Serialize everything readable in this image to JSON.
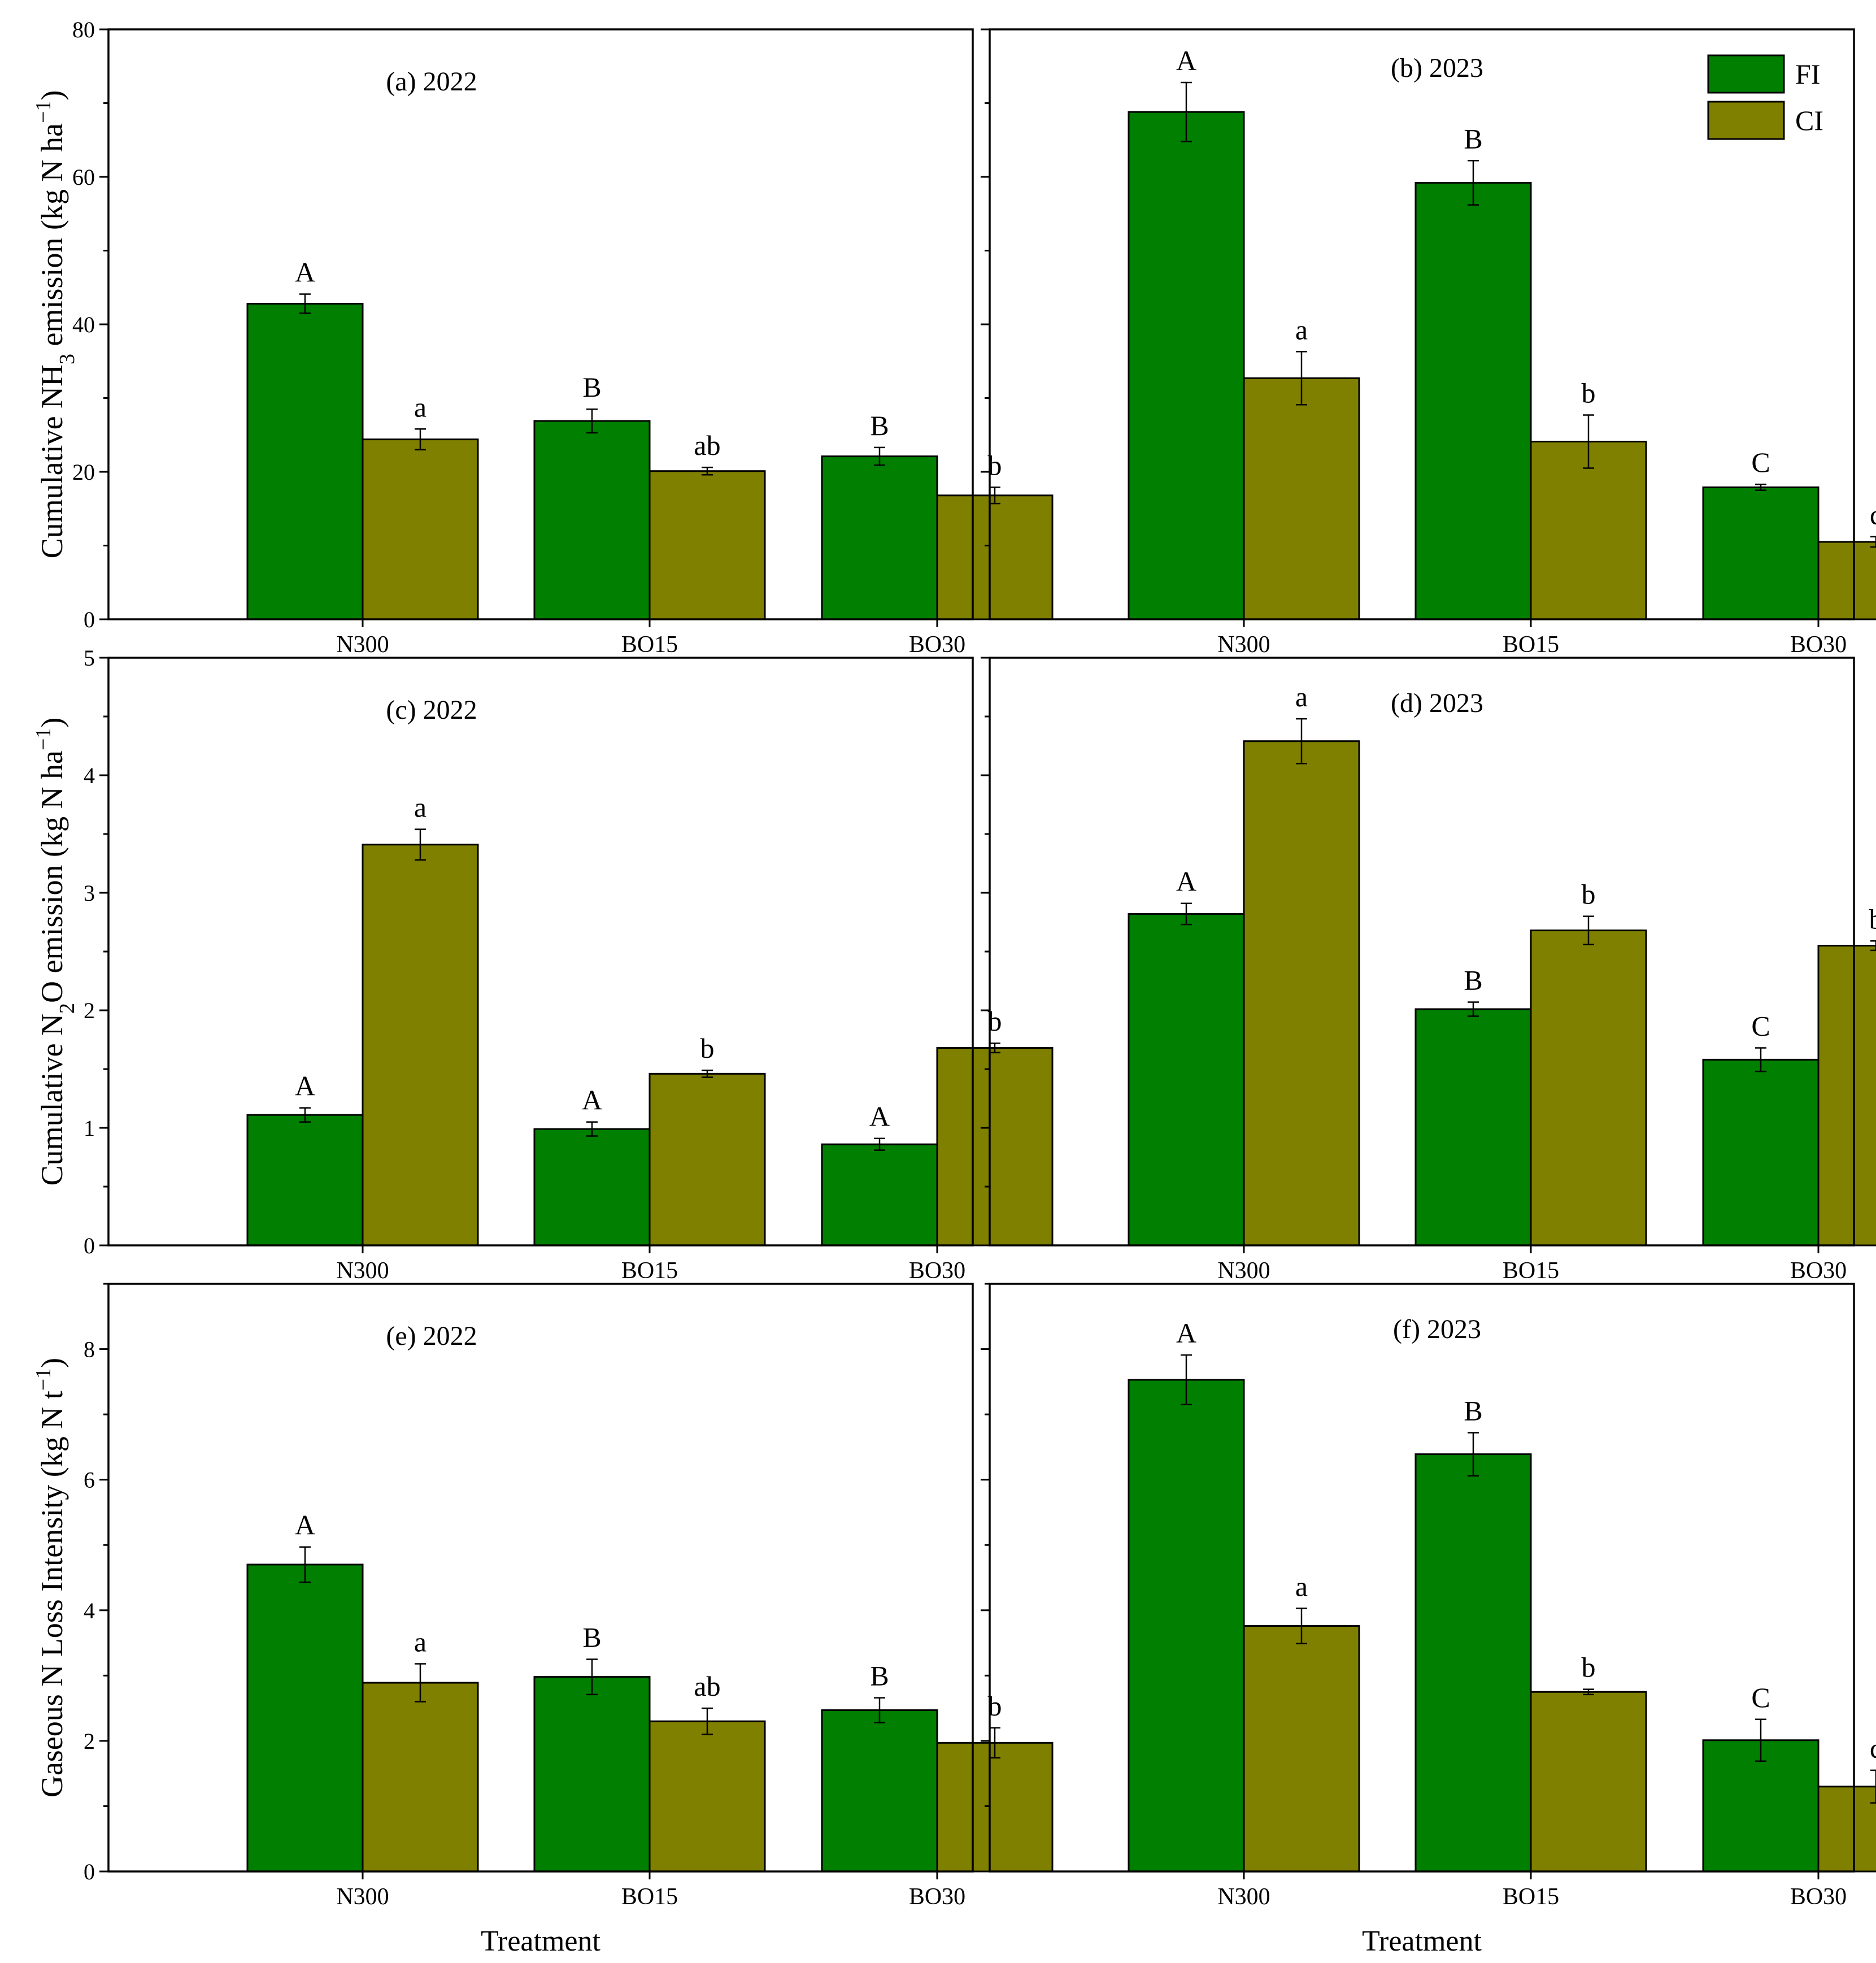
{
  "figure": {
    "x_axis_title": "Treatment",
    "legend": [
      {
        "label": "FI",
        "color": "#007f00"
      },
      {
        "label": "CI",
        "color": "#7f7f00"
      }
    ],
    "y_axis_titles": [
      {
        "pre": "Cumulative NH",
        "sub": "3",
        "mid": " emission (kg N ha",
        "sup": "−1",
        "post": ")"
      },
      {
        "pre": "Cumulative N",
        "sub": "2",
        "mid": "O emission (kg N ha",
        "sup": "−1",
        "post": ")"
      },
      {
        "pre": "Gaseous N Loss Intensity (kg N t",
        "sub": "",
        "mid": "",
        "sup": "−1",
        "post": ")"
      }
    ]
  },
  "chart_data": [
    {
      "panel": "a",
      "title": "(a) 2022",
      "type": "bar",
      "categories": [
        "N300",
        "BO15",
        "BO30"
      ],
      "ylim": [
        0,
        80
      ],
      "ymajor": 20,
      "yminor": 10,
      "ytick_labels": true,
      "series": [
        {
          "name": "FI",
          "values": [
            42.8,
            26.9,
            22.1
          ],
          "errors": [
            1.3,
            1.6,
            1.2
          ],
          "letters": [
            "A",
            "B",
            "B"
          ]
        },
        {
          "name": "CI",
          "values": [
            24.4,
            20.1,
            16.8
          ],
          "errors": [
            1.4,
            0.5,
            1.1
          ],
          "letters": [
            "a",
            "ab",
            "b"
          ]
        }
      ]
    },
    {
      "panel": "b",
      "title": "(b) 2023",
      "type": "bar",
      "categories": [
        "N300",
        "BO15",
        "BO30"
      ],
      "ylim": [
        0,
        80
      ],
      "ymajor": 20,
      "yminor": 10,
      "ytick_labels": false,
      "series": [
        {
          "name": "FI",
          "values": [
            68.8,
            59.2,
            17.9
          ],
          "errors": [
            4.0,
            3.0,
            0.4
          ],
          "letters": [
            "A",
            "B",
            "C"
          ]
        },
        {
          "name": "CI",
          "values": [
            32.7,
            24.1,
            10.5
          ],
          "errors": [
            3.6,
            3.6,
            0.7
          ],
          "letters": [
            "a",
            "b",
            "c"
          ]
        }
      ]
    },
    {
      "panel": "c",
      "title": "(c) 2022",
      "type": "bar",
      "categories": [
        "N300",
        "BO15",
        "BO30"
      ],
      "ylim": [
        0,
        5
      ],
      "ymajor": 1,
      "yminor": 0.5,
      "ytick_labels": true,
      "series": [
        {
          "name": "FI",
          "values": [
            1.11,
            0.99,
            0.86
          ],
          "errors": [
            0.06,
            0.06,
            0.05
          ],
          "letters": [
            "A",
            "A",
            "A"
          ]
        },
        {
          "name": "CI",
          "values": [
            3.41,
            1.46,
            1.68
          ],
          "errors": [
            0.13,
            0.03,
            0.04
          ],
          "letters": [
            "a",
            "b",
            "b"
          ]
        }
      ]
    },
    {
      "panel": "d",
      "title": "(d) 2023",
      "type": "bar",
      "categories": [
        "N300",
        "BO15",
        "BO30"
      ],
      "ylim": [
        0,
        5
      ],
      "ymajor": 1,
      "yminor": 0.5,
      "ytick_labels": false,
      "series": [
        {
          "name": "FI",
          "values": [
            2.82,
            2.01,
            1.58
          ],
          "errors": [
            0.09,
            0.06,
            0.1
          ],
          "letters": [
            "A",
            "B",
            "C"
          ]
        },
        {
          "name": "CI",
          "values": [
            4.29,
            2.68,
            2.55
          ],
          "errors": [
            0.19,
            0.12,
            0.04
          ],
          "letters": [
            "a",
            "b",
            "b"
          ]
        }
      ]
    },
    {
      "panel": "e",
      "title": "(e) 2022",
      "type": "bar",
      "categories": [
        "N300",
        "BO15",
        "BO30"
      ],
      "ylim": [
        0,
        9
      ],
      "ymajor": 2,
      "yminor": 1,
      "ytick_labels": true,
      "series": [
        {
          "name": "FI",
          "values": [
            4.7,
            2.98,
            2.47
          ],
          "errors": [
            0.27,
            0.27,
            0.19
          ],
          "letters": [
            "A",
            "B",
            "B"
          ]
        },
        {
          "name": "CI",
          "values": [
            2.89,
            2.3,
            1.97
          ],
          "errors": [
            0.29,
            0.2,
            0.23
          ],
          "letters": [
            "a",
            "ab",
            "b"
          ]
        }
      ]
    },
    {
      "panel": "f",
      "title": "(f) 2023",
      "type": "bar",
      "categories": [
        "N300",
        "BO15",
        "BO30"
      ],
      "ylim": [
        0,
        9
      ],
      "ymajor": 2,
      "yminor": 1,
      "ytick_labels": false,
      "series": [
        {
          "name": "FI",
          "values": [
            7.53,
            6.39,
            2.01
          ],
          "errors": [
            0.38,
            0.33,
            0.32
          ],
          "letters": [
            "A",
            "B",
            "C"
          ]
        },
        {
          "name": "CI",
          "values": [
            3.76,
            2.75,
            1.3
          ],
          "errors": [
            0.27,
            0.04,
            0.25
          ],
          "letters": [
            "a",
            "b",
            "c"
          ]
        }
      ]
    }
  ]
}
